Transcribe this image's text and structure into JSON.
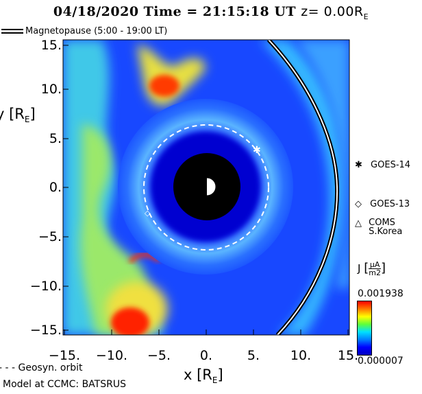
{
  "title": {
    "date": "04/18/2020",
    "time_label": "Time =",
    "time": "21:15:18 UT",
    "z_label": "z= 0.00R",
    "z_sub": "E"
  },
  "legend": {
    "magnetopause": "Magnetopause (5:00 - 19:00 LT)",
    "geosync": "- - - Geosyn. orbit"
  },
  "axes": {
    "y_title": "y [R",
    "y_sub": "E",
    "x_title": "x [R",
    "x_sub": "E",
    "y_ticks": [
      "15.",
      "10.",
      "5.",
      "0.",
      "−5.",
      "−10.",
      "−15."
    ],
    "x_ticks": [
      "−15.",
      "−10.",
      "−5.",
      "0.",
      "5.",
      "10.",
      "15."
    ]
  },
  "satellites": [
    {
      "symbol": "✱",
      "label": "GOES-14"
    },
    {
      "symbol": "◇",
      "label": "GOES-13"
    },
    {
      "symbol": "△",
      "label": "COMS S.Korea"
    }
  ],
  "colorbar": {
    "label": "J",
    "units_num": "μA",
    "units_den": "m2",
    "max": "0.001938",
    "min": "0.000007"
  },
  "credit": "Model at CCMC: BATSRUS",
  "colors": {
    "low": "#0000ff",
    "mid": "#00e0ff",
    "high": "#ff0000"
  }
}
